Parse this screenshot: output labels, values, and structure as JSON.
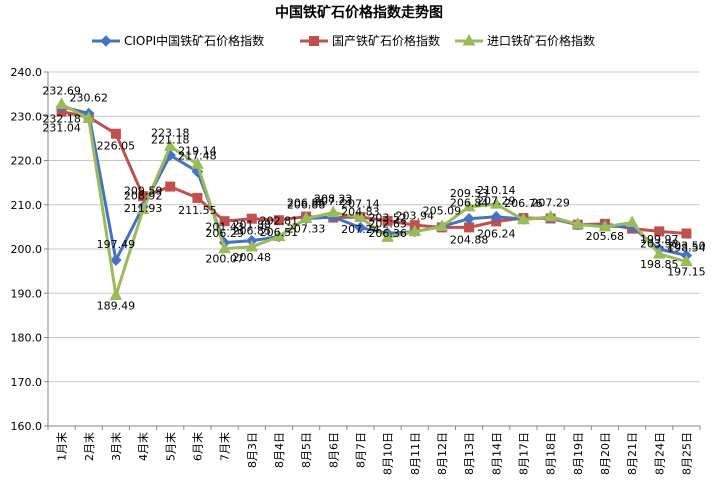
{
  "chart_data": {
    "type": "line",
    "title": "中国铁矿石价格指数走势图",
    "xlabel": "",
    "ylabel": "",
    "ylim": [
      160,
      240
    ],
    "y_ticks": [
      "160.0",
      "170.0",
      "180.0",
      "190.0",
      "200.0",
      "210.0",
      "220.0",
      "230.0",
      "240.0"
    ],
    "grid": true,
    "legend_position": "top",
    "categories": [
      "1月末",
      "2月末",
      "3月末",
      "4月末",
      "5月末",
      "6月末",
      "7月末",
      "8月3日",
      "8月4日",
      "8月5日",
      "8月6日",
      "8月7日",
      "8月10日",
      "8月11日",
      "8月12日",
      "8月13日",
      "8月14日",
      "8月17日",
      "8月18日",
      "8月19日",
      "8月20日",
      "8月21日",
      "8月24日",
      "8月25日"
    ],
    "series": [
      {
        "name": "CIOPI中国铁矿石价格指数",
        "color": "#4472C4",
        "marker": "diamond",
        "values": [
          232.18,
          230.62,
          197.49,
          209.59,
          221.18,
          217.48,
          201.43,
          201.88,
          202.81,
          206.86,
          207.23,
          204.83,
          203.52,
          203.94,
          205.09,
          206.84,
          207.29,
          206.76,
          207.1,
          205.5,
          205.2,
          205.0,
          199.97,
          198.54
        ],
        "labels": [
          "232.18",
          "230.62",
          "197.49",
          "209.59",
          "221.18",
          "217.48",
          "201.43",
          "201.88",
          "202.81",
          "206.86",
          "207.23",
          "204.83",
          "203.52",
          "203.94",
          "205.09",
          "206.84",
          "207.29",
          "206.76",
          "",
          "",
          "",
          "",
          "199.97",
          "198.54"
        ]
      },
      {
        "name": "国产铁矿石价格指数",
        "color": "#C0504D",
        "marker": "square",
        "values": [
          231.04,
          229.8,
          226.05,
          211.93,
          214.1,
          211.55,
          206.29,
          206.85,
          206.51,
          207.33,
          207.1,
          207.24,
          206.36,
          205.4,
          204.88,
          204.88,
          206.24,
          207.0,
          206.9,
          205.5,
          205.68,
          204.6,
          203.98,
          203.5
        ],
        "labels": [
          "231.04",
          "",
          "226.05",
          "211.93",
          "",
          "211.55",
          "206.29",
          "206.85",
          "206.51",
          "207.33",
          "",
          "207.24",
          "206.36",
          "",
          "",
          "204.88",
          "206.24",
          "",
          "",
          "",
          "205.68",
          "",
          "203.98",
          "203.50"
        ]
      },
      {
        "name": "进口铁矿石价格指数",
        "color": "#9BBB59",
        "marker": "triangle",
        "values": [
          232.69,
          229.5,
          189.49,
          208.92,
          223.18,
          219.14,
          200.07,
          200.48,
          202.81,
          206.88,
          208.22,
          207.14,
          202.63,
          203.94,
          205.09,
          209.53,
          210.14,
          206.6,
          207.29,
          205.6,
          205.0,
          206.0,
          198.85,
          197.15
        ],
        "labels": [
          "232.69",
          "",
          "189.49",
          "208.92",
          "223.18",
          "219.14",
          "200.07",
          "200.48",
          "",
          "206.88",
          "208.22",
          "207.14",
          "202.63",
          "",
          "",
          "209.53",
          "210.14",
          "",
          "207.29",
          "",
          "",
          "",
          "198.85",
          "197.15"
        ]
      }
    ]
  }
}
